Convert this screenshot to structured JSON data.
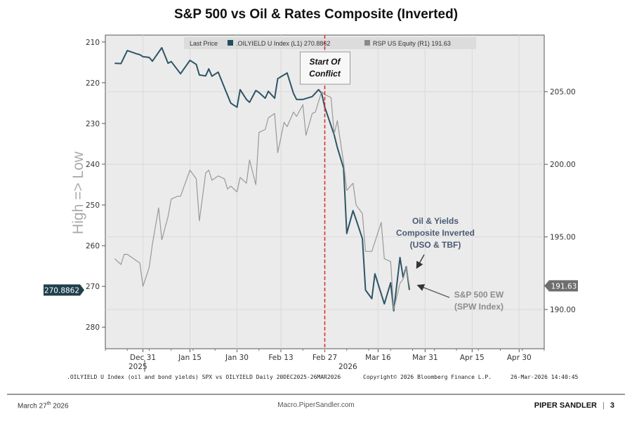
{
  "chart_data": {
    "type": "line",
    "title": "S&P 500 vs Oil & Rates Composite (Inverted)",
    "ylabel": "High => Low",
    "left_axis": {
      "ylim": [
        208.3,
        285.3
      ],
      "ticks": [
        "210",
        "220",
        "230",
        "240",
        "250",
        "260",
        "270",
        "280"
      ],
      "inverted": true
    },
    "right_axis": {
      "ylim": [
        187.3,
        208.9
      ],
      "ticks": [
        "190.00",
        "195.00",
        "200.00",
        "205.00"
      ]
    },
    "x_axis": {
      "xlim": [
        "2025-12-19",
        "2026-05-08"
      ],
      "ticks": [
        {
          "date": "2025-12-31",
          "label": "Dec 31"
        },
        {
          "date": "2026-01-15",
          "label": "Jan 15"
        },
        {
          "date": "2026-01-30",
          "label": "Jan 30"
        },
        {
          "date": "2026-02-13",
          "label": "Feb 13"
        },
        {
          "date": "2026-02-27",
          "label": "Feb 27"
        },
        {
          "date": "2026-03-16",
          "label": "Mar 16"
        },
        {
          "date": "2026-03-31",
          "label": "Mar 31"
        },
        {
          "date": "2026-04-15",
          "label": "Apr 15"
        },
        {
          "date": "2026-04-30",
          "label": "Apr 30"
        }
      ],
      "year_labels": [
        "2025",
        "2026"
      ]
    },
    "grid": true,
    "legend": {
      "placement": "top",
      "prefix": "Last Price",
      "entries": [
        {
          "label": ".OILYIELD U Index  (L1) 270.8862",
          "color": "#1f4e5f"
        },
        {
          "label": "RSP US Equity  (R1) 191.63",
          "color": "#8a8a8a"
        }
      ]
    },
    "series": [
      {
        "name": ".OILYIELD U Index",
        "axis": "left",
        "color": "#2d5566",
        "last_value": "270.8862",
        "x": [
          "2025-12-22",
          "2025-12-24",
          "2025-12-26",
          "2025-12-29",
          "2025-12-30",
          "2025-12-31",
          "2026-01-02",
          "2026-01-03",
          "2026-01-06",
          "2026-01-08",
          "2026-01-09",
          "2026-01-12",
          "2026-01-15",
          "2026-01-17",
          "2026-01-18",
          "2026-01-20",
          "2026-01-21",
          "2026-01-22",
          "2026-01-24",
          "2026-01-26",
          "2026-01-28",
          "2026-01-30",
          "2026-01-31",
          "2026-02-02",
          "2026-02-03",
          "2026-02-05",
          "2026-02-06",
          "2026-02-08",
          "2026-02-09",
          "2026-02-11",
          "2026-02-12",
          "2026-02-15",
          "2026-02-17",
          "2026-02-18",
          "2026-02-20",
          "2026-02-23",
          "2026-02-25",
          "2026-02-26",
          "2026-02-27",
          "2026-03-01",
          "2026-03-02",
          "2026-03-03",
          "2026-03-05",
          "2026-03-06",
          "2026-03-08",
          "2026-03-09",
          "2026-03-11",
          "2026-03-12",
          "2026-03-14",
          "2026-03-15",
          "2026-03-18",
          "2026-03-20",
          "2026-03-21",
          "2026-03-23",
          "2026-03-24",
          "2026-03-25",
          "2026-03-26"
        ],
        "y": [
          215.2,
          215.3,
          212.1,
          212.9,
          213.1,
          213.6,
          213.8,
          214.7,
          211.4,
          215.2,
          214.8,
          217.8,
          214.5,
          215.5,
          218.1,
          218.3,
          216.6,
          218.4,
          217.4,
          221.2,
          225.0,
          226.0,
          221.7,
          224.1,
          224.8,
          221.9,
          222.4,
          223.8,
          222.1,
          223.8,
          219.0,
          217.6,
          222.6,
          224.1,
          224.1,
          223.4,
          221.7,
          222.6,
          226.0,
          230.5,
          232.8,
          235.9,
          241.0,
          257.0,
          251.4,
          253.6,
          258.3,
          270.9,
          273.0,
          266.9,
          274.3,
          269.1,
          276.0,
          262.9,
          267.8,
          265.2,
          270.8862
        ]
      },
      {
        "name": "RSP US Equity",
        "axis": "right",
        "color": "#999999",
        "last_value": "191.63",
        "x": [
          "2025-12-22",
          "2025-12-24",
          "2025-12-25",
          "2025-12-26",
          "2025-12-30",
          "2025-12-31",
          "2026-01-02",
          "2026-01-03",
          "2026-01-05",
          "2026-01-06",
          "2026-01-08",
          "2026-01-09",
          "2026-01-11",
          "2026-01-12",
          "2026-01-15",
          "2026-01-17",
          "2026-01-18",
          "2026-01-20",
          "2026-01-21",
          "2026-01-22",
          "2026-01-24",
          "2026-01-26",
          "2026-01-27",
          "2026-01-28",
          "2026-01-30",
          "2026-01-31",
          "2026-02-02",
          "2026-02-03",
          "2026-02-05",
          "2026-02-06",
          "2026-02-08",
          "2026-02-09",
          "2026-02-11",
          "2026-02-12",
          "2026-02-14",
          "2026-02-15",
          "2026-02-17",
          "2026-02-18",
          "2026-02-20",
          "2026-02-21",
          "2026-02-23",
          "2026-02-24",
          "2026-02-26",
          "2026-02-27",
          "2026-03-01",
          "2026-03-02",
          "2026-03-03",
          "2026-03-05",
          "2026-03-06",
          "2026-03-08",
          "2026-03-09",
          "2026-03-11",
          "2026-03-12",
          "2026-03-14",
          "2026-03-17",
          "2026-03-18",
          "2026-03-20",
          "2026-03-21",
          "2026-03-23",
          "2026-03-24",
          "2026-03-25",
          "2026-03-26"
        ],
        "y": [
          193.5,
          193.1,
          193.8,
          193.8,
          193.2,
          191.6,
          192.9,
          194.5,
          197.0,
          194.8,
          196.4,
          197.6,
          197.8,
          197.8,
          199.6,
          199.0,
          196.1,
          199.4,
          199.6,
          198.9,
          199.2,
          199.0,
          198.3,
          198.5,
          198.1,
          199.1,
          198.7,
          200.3,
          198.6,
          202.2,
          202.4,
          203.2,
          203.5,
          200.8,
          202.9,
          202.6,
          203.6,
          203.3,
          204.1,
          202.0,
          203.5,
          203.6,
          205.0,
          204.8,
          204.6,
          202.1,
          203.0,
          200.1,
          198.2,
          198.7,
          197.2,
          196.6,
          194.0,
          194.0,
          196.0,
          193.5,
          193.3,
          190.0,
          191.8,
          192.1,
          192.9,
          191.63
        ]
      }
    ],
    "annotations": {
      "event_line": {
        "date": "2026-02-27",
        "color": "#e03030",
        "label_lines": [
          "Start Of",
          "Conflict"
        ]
      },
      "oil_label": [
        "Oil & Yields",
        "Composite Inverted",
        "(USO & TBF)"
      ],
      "spw_label": [
        "S&P 500 EW",
        "(SPW Index)"
      ]
    },
    "source_note": ".OILYIELD U Index (oil and bond yields) SPX vs OILYIELD Daily 20DEC2025-26MAR2026",
    "copyright": "Copyright© 2026 Bloomberg Finance L.P.",
    "timestamp": "26-Mar-2026 14:40:45"
  },
  "footer": {
    "date": "March 27",
    "date_sup": "th",
    "date_year": " 2026",
    "url": "Macro.PiperSandler.com",
    "brand": "PIPER SANDLER",
    "page": "3"
  }
}
